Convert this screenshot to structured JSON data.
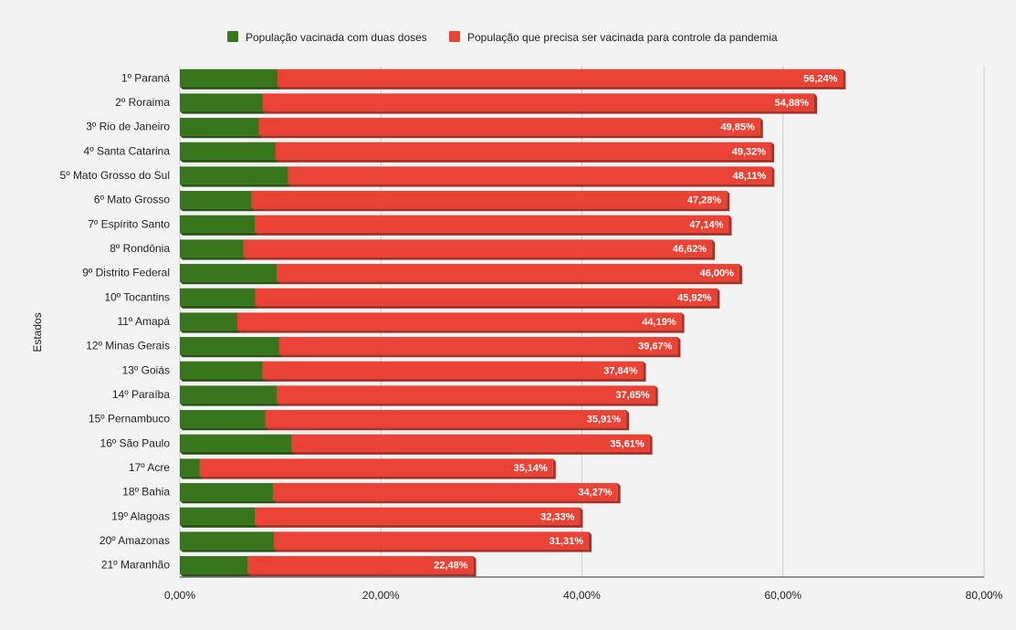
{
  "chart_data": {
    "type": "bar",
    "orientation": "horizontal",
    "stacked": true,
    "ylabel": "Estados",
    "xlabel": "",
    "xlim": [
      0,
      80
    ],
    "x_ticks": [
      "0,00%",
      "20,00%",
      "40,00%",
      "60,00%",
      "80,00%"
    ],
    "legend_position": "top",
    "grid": true,
    "categories": [
      "1º Paraná",
      "2º Roraima",
      "3º Rio de Janeiro",
      "4º Santa Catarina",
      "5º Mato Grosso do Sul",
      "6º Mato Grosso",
      "7º Espírito Santo",
      "8º Rondônia",
      "9º Distrito Federal",
      "10º Tocantins",
      "11º Amapá",
      "12º Minas Gerais",
      "13º Goiás",
      "14º Paraíba",
      "15º Pernambuco",
      "16º São Paulo",
      "17º Acre",
      "18º Bahia",
      "19º Alagoas",
      "20º Amazonas",
      "21º Maranhão"
    ],
    "series": [
      {
        "name": "População vacinada com duas doses",
        "color": "#38761d",
        "values": [
          9.72,
          8.23,
          7.88,
          9.53,
          10.76,
          7.13,
          7.48,
          6.33,
          9.66,
          7.51,
          5.72,
          9.86,
          8.25,
          9.63,
          8.5,
          11.12,
          1.98,
          9.29,
          7.48,
          9.37,
          6.72
        ],
        "labels": [
          "9,72%",
          "8,23%",
          "7,88%",
          "9,53%",
          "10,76%",
          "7,13%",
          "7,48%",
          "6,33%",
          "9,66%",
          "7,51%",
          "5,72%",
          "9,86%",
          "8,25%",
          "9,63%",
          "8,50%",
          "11,12%",
          "1,98%",
          "9,29%",
          "7,48%",
          "9,37%",
          "6,72%"
        ]
      },
      {
        "name": "População que precisa ser vacinada para controle da pandemia",
        "color": "#ea4335",
        "values": [
          56.24,
          54.88,
          49.85,
          49.32,
          48.11,
          47.28,
          47.14,
          46.62,
          46.0,
          45.92,
          44.19,
          39.67,
          37.84,
          37.65,
          35.91,
          35.61,
          35.14,
          34.27,
          32.33,
          31.31,
          22.48
        ],
        "labels": [
          "56,24%",
          "54,88%",
          "49,85%",
          "49,32%",
          "48,11%",
          "47,28%",
          "47,14%",
          "46,62%",
          "46,00%",
          "45,92%",
          "44,19%",
          "39,67%",
          "37,84%",
          "37,65%",
          "35,91%",
          "35,61%",
          "35,14%",
          "34,27%",
          "32,33%",
          "31,31%",
          "22,48%"
        ]
      }
    ]
  }
}
